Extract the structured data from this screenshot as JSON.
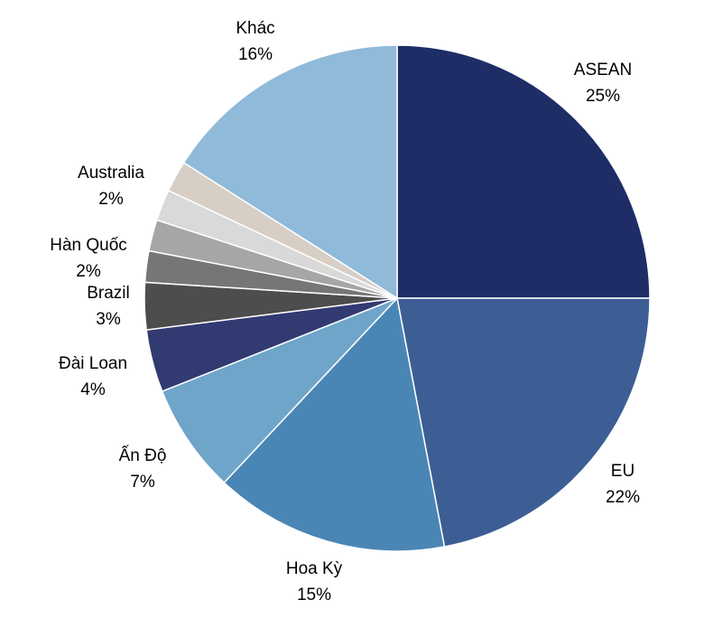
{
  "chart_data": {
    "type": "pie",
    "categories": [
      "ASEAN",
      "EU",
      "Hoa Kỳ",
      "Ấn Độ",
      "Đài Loan",
      "Brazil",
      "Hàn Quốc",
      null,
      null,
      "Australia",
      "Khác"
    ],
    "values": [
      25,
      22,
      15,
      7,
      4,
      3,
      2,
      2,
      2,
      2,
      16
    ],
    "value_labels": [
      "25%",
      "22%",
      "15%",
      "7%",
      "4%",
      "3%",
      "2%",
      null,
      null,
      "2%",
      "16%"
    ],
    "colors": [
      "#1f2d67",
      "#3c5e94",
      "#4a86b5",
      "#6fa5c9",
      "#323a72",
      "#4d4d4d",
      "#767676",
      "#a6a6a6",
      "#d9d9d9",
      "#d7cec6",
      "#8fbad9"
    ]
  }
}
